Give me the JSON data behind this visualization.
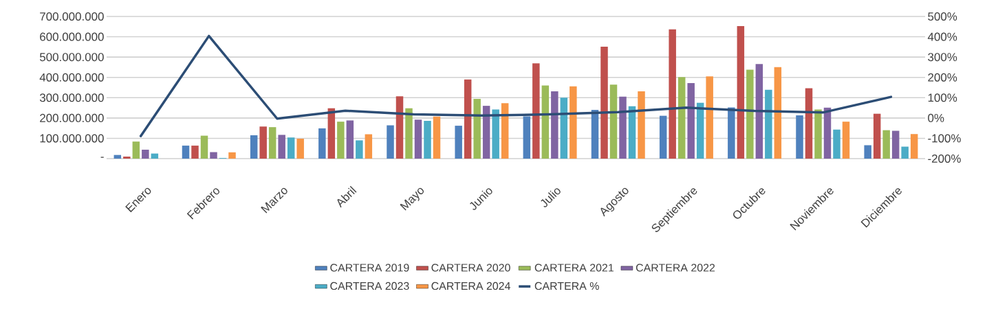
{
  "chart_data": {
    "type": "bar",
    "categories": [
      "Enero",
      "Febrero",
      "Marzo",
      "Abril",
      "Mayo",
      "Junio",
      "Julio",
      "Agosto",
      "Septiembre",
      "Octubre",
      "Noviembre",
      "Diciembre"
    ],
    "series": [
      {
        "name": "CARTERA 2019",
        "color": "#4f81bd",
        "values": [
          18000000,
          64000000,
          115000000,
          149000000,
          164000000,
          162000000,
          208000000,
          240000000,
          211000000,
          252000000,
          213000000,
          66000000
        ]
      },
      {
        "name": "CARTERA 2020",
        "color": "#c0504d",
        "values": [
          10000000,
          64000000,
          158000000,
          248000000,
          307000000,
          390000000,
          469000000,
          551000000,
          637000000,
          653000000,
          347000000,
          221000000
        ]
      },
      {
        "name": "CARTERA 2021",
        "color": "#9bbb59",
        "values": [
          84000000,
          113000000,
          155000000,
          182000000,
          248000000,
          294000000,
          360000000,
          364000000,
          402000000,
          438000000,
          242000000,
          140000000
        ]
      },
      {
        "name": "CARTERA 2022",
        "color": "#8064a2",
        "values": [
          44000000,
          32000000,
          117000000,
          188000000,
          192000000,
          260000000,
          331000000,
          305000000,
          372000000,
          466000000,
          251000000,
          137000000
        ]
      },
      {
        "name": "CARTERA 2023",
        "color": "#4bacc6",
        "values": [
          25000000,
          3000000,
          104000000,
          90000000,
          186000000,
          242000000,
          300000000,
          258000000,
          275000000,
          339000000,
          143000000,
          59000000
        ]
      },
      {
        "name": "CARTERA 2024",
        "color": "#f79646",
        "values": [
          null,
          31000000,
          98000000,
          120000000,
          207000000,
          273000000,
          356000000,
          331000000,
          405000000,
          451000000,
          182000000,
          121000000
        ]
      },
      {
        "name": "CARTERA %",
        "color": "#2c4d75",
        "type": "line",
        "axis": "y2",
        "values": [
          -89,
          404,
          -3,
          36,
          18,
          12,
          18,
          29,
          51,
          35,
          27,
          104
        ]
      }
    ],
    "ylim": [
      0,
      700000000
    ],
    "yticks": [
      {
        "value": 0,
        "label": "-"
      },
      {
        "value": 100000000,
        "label": "100.000.000"
      },
      {
        "value": 200000000,
        "label": "200.000.000"
      },
      {
        "value": 300000000,
        "label": "300.000.000"
      },
      {
        "value": 400000000,
        "label": "400.000.000"
      },
      {
        "value": 500000000,
        "label": "500.000.000"
      },
      {
        "value": 600000000,
        "label": "600.000.000"
      },
      {
        "value": 700000000,
        "label": "700.000.000"
      }
    ],
    "y2lim": [
      -200,
      500
    ],
    "y2ticks": [
      {
        "value": -200,
        "label": "-200%"
      },
      {
        "value": -100,
        "label": "-100%"
      },
      {
        "value": 0,
        "label": "0%"
      },
      {
        "value": 100,
        "label": "100%"
      },
      {
        "value": 200,
        "label": "200%"
      },
      {
        "value": 300,
        "label": "300%"
      },
      {
        "value": 400,
        "label": "400%"
      },
      {
        "value": 500,
        "label": "500%"
      }
    ],
    "grid": "y",
    "legend": "bottom"
  }
}
